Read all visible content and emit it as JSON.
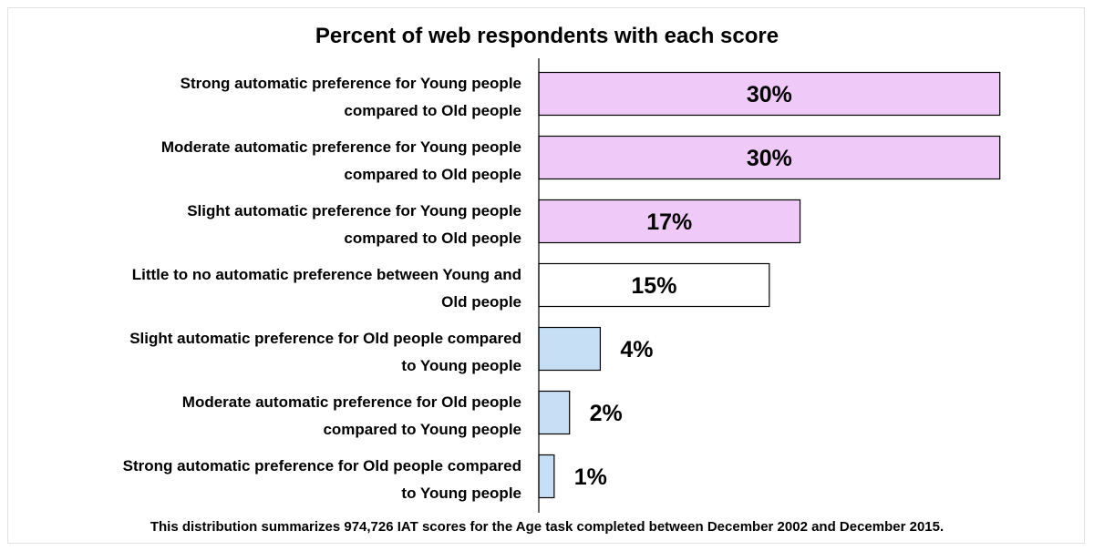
{
  "chart_data": {
    "type": "bar",
    "orientation": "horizontal",
    "title": "Percent of web respondents with each score",
    "categories": [
      [
        "Strong automatic preference for Young people",
        "compared to Old people"
      ],
      [
        "Moderate automatic preference for Young people",
        "compared to Old people"
      ],
      [
        "Slight automatic preference for Young people",
        "compared to Old people"
      ],
      [
        "Little to no automatic preference between Young and",
        "Old people"
      ],
      [
        "Slight automatic preference for Old people compared",
        "to Young people"
      ],
      [
        "Moderate automatic preference for Old people",
        "compared to Young people"
      ],
      [
        "Strong automatic preference for Old people compared",
        "to Young people"
      ]
    ],
    "values": [
      30,
      30,
      17,
      15,
      4,
      2,
      1
    ],
    "value_labels": [
      "30%",
      "30%",
      "17%",
      "15%",
      "4%",
      "2%",
      "1%"
    ],
    "bar_colors": [
      "#efc9f7",
      "#efc9f7",
      "#efc9f7",
      "#ffffff",
      "#c6dff4",
      "#c6dff4",
      "#c6dff4"
    ],
    "xlim": [
      0,
      35
    ],
    "grid": false,
    "legend": "none"
  },
  "footnote": "This distribution summarizes 974,726 IAT scores for the Age task completed between December 2002 and December 2015."
}
